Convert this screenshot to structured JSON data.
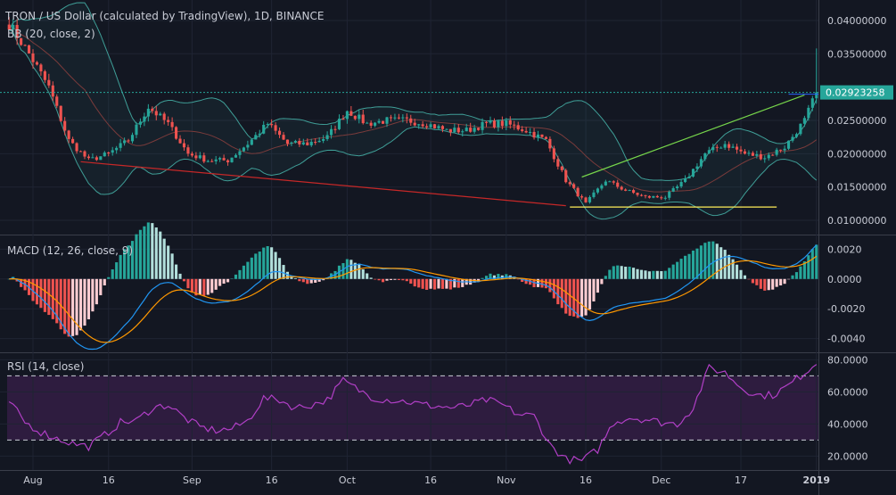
{
  "header": {
    "title": "TRON / US Dollar (calculated by TradingView), 1D, BINANCE",
    "bb_label": "BB (20, close, 2)",
    "macd_label": "MACD (12, 26, close, 9)",
    "rsi_label": "RSI (14, close)"
  },
  "colors": {
    "background": "#131722",
    "up": "#26a69a",
    "down": "#ef5350",
    "bb_band": "#3f9e97",
    "bb_basis": "#7a3b3b",
    "macd_line": "#2196f3",
    "signal_line": "#ff9800",
    "rsi_line": "#b13fc6",
    "rsi_fill": "#2e1c3f",
    "trend_red": "#c62828",
    "trend_green": "#76d64b",
    "trend_yellow": "#ffee58",
    "price_line": "#26a69a",
    "price_tag": "#26a69a"
  },
  "chart_data": [
    {
      "type": "candlestick",
      "name": "price",
      "ylim": [
        0.008,
        0.042
      ],
      "y_ticks": [
        "0.04000000",
        "0.03500000",
        "0.02500000",
        "0.02000000",
        "0.01500000",
        "0.01000000"
      ],
      "current_price": "0.02923258",
      "x_ticks": [
        "Aug",
        "16",
        "Sep",
        "16",
        "Oct",
        "16",
        "Nov",
        "16",
        "Dec",
        "17",
        "2019"
      ],
      "close_path": [
        [
          0,
          0.0395
        ],
        [
          5,
          0.035
        ],
        [
          10,
          0.03
        ],
        [
          15,
          0.022
        ],
        [
          20,
          0.019
        ],
        [
          25,
          0.02
        ],
        [
          30,
          0.022
        ],
        [
          35,
          0.027
        ],
        [
          40,
          0.0245
        ],
        [
          45,
          0.02
        ],
        [
          50,
          0.019
        ],
        [
          55,
          0.019
        ],
        [
          60,
          0.0215
        ],
        [
          65,
          0.0245
        ],
        [
          70,
          0.0215
        ],
        [
          75,
          0.0215
        ],
        [
          80,
          0.0225
        ],
        [
          85,
          0.0265
        ],
        [
          90,
          0.0245
        ],
        [
          95,
          0.025
        ],
        [
          100,
          0.025
        ],
        [
          105,
          0.0245
        ],
        [
          110,
          0.0235
        ],
        [
          115,
          0.0235
        ],
        [
          120,
          0.0245
        ],
        [
          125,
          0.0245
        ],
        [
          130,
          0.0235
        ],
        [
          135,
          0.022
        ],
        [
          140,
          0.016
        ],
        [
          145,
          0.0125
        ],
        [
          150,
          0.016
        ],
        [
          155,
          0.0145
        ],
        [
          160,
          0.0135
        ],
        [
          165,
          0.0135
        ],
        [
          170,
          0.016
        ],
        [
          175,
          0.02
        ],
        [
          180,
          0.0215
        ],
        [
          185,
          0.02
        ],
        [
          190,
          0.0195
        ],
        [
          195,
          0.021
        ],
        [
          200,
          0.025
        ],
        [
          203,
          0.0292
        ]
      ]
    },
    {
      "type": "line",
      "name": "macd",
      "ylim": [
        -0.0048,
        0.0028
      ],
      "y_ticks": [
        "0.0020",
        "0.0000",
        "-0.0020",
        "-0.0040"
      ]
    },
    {
      "type": "line",
      "name": "rsi",
      "ylim": [
        13,
        83
      ],
      "y_ticks": [
        "80.0000",
        "60.0000",
        "40.0000",
        "20.0000"
      ],
      "band": [
        30,
        70
      ],
      "rsi_path": [
        [
          0,
          54
        ],
        [
          4,
          41
        ],
        [
          8,
          35
        ],
        [
          12,
          31
        ],
        [
          16,
          28
        ],
        [
          20,
          26
        ],
        [
          24,
          33
        ],
        [
          28,
          41
        ],
        [
          32,
          42
        ],
        [
          36,
          50
        ],
        [
          40,
          52
        ],
        [
          44,
          44
        ],
        [
          48,
          38
        ],
        [
          52,
          36
        ],
        [
          56,
          37
        ],
        [
          60,
          42
        ],
        [
          64,
          56
        ],
        [
          68,
          55
        ],
        [
          72,
          50
        ],
        [
          76,
          52
        ],
        [
          80,
          55
        ],
        [
          84,
          67
        ],
        [
          88,
          61
        ],
        [
          92,
          56
        ],
        [
          96,
          55
        ],
        [
          100,
          54
        ],
        [
          104,
          52
        ],
        [
          108,
          51
        ],
        [
          112,
          50
        ],
        [
          116,
          52
        ],
        [
          120,
          55
        ],
        [
          124,
          52
        ],
        [
          128,
          46
        ],
        [
          132,
          45
        ],
        [
          136,
          27
        ],
        [
          140,
          18
        ],
        [
          144,
          17
        ],
        [
          148,
          24
        ],
        [
          152,
          41
        ],
        [
          156,
          44
        ],
        [
          160,
          43
        ],
        [
          164,
          41
        ],
        [
          168,
          40
        ],
        [
          172,
          50
        ],
        [
          176,
          75
        ],
        [
          180,
          72
        ],
        [
          184,
          63
        ],
        [
          188,
          58
        ],
        [
          192,
          58
        ],
        [
          196,
          64
        ],
        [
          200,
          72
        ],
        [
          203,
          78
        ]
      ]
    }
  ]
}
